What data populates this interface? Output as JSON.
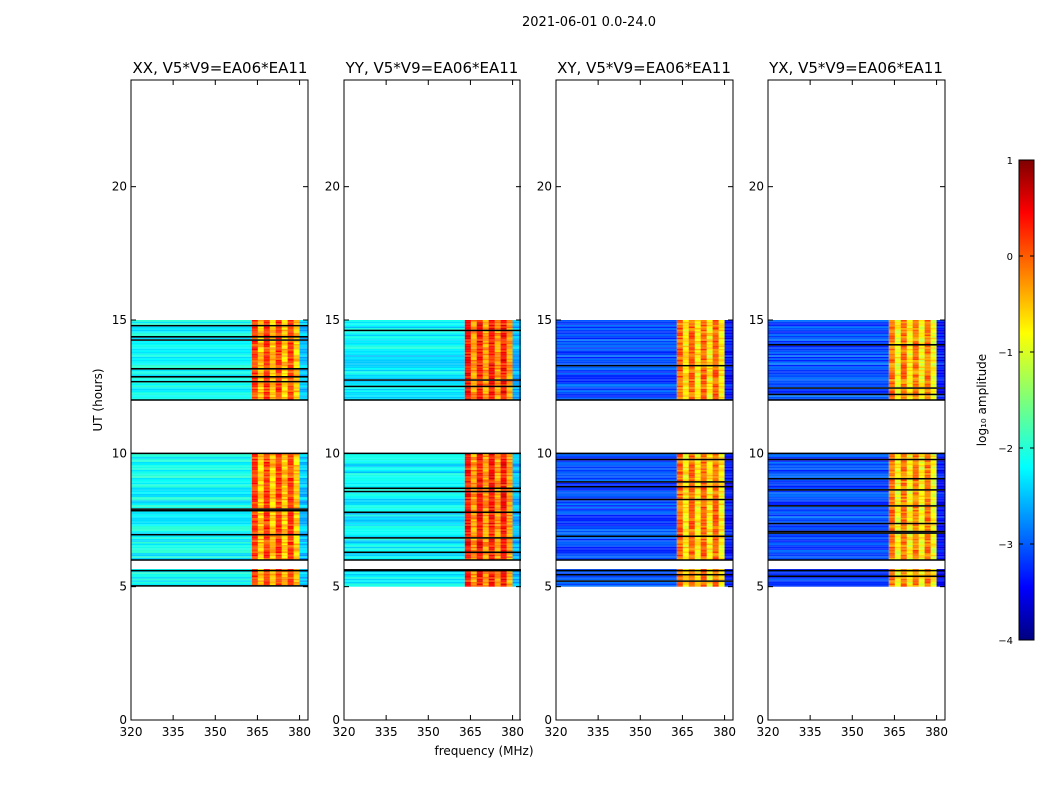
{
  "figure_title": "2021-06-01 0.0-24.0",
  "chart_data": {
    "type": "heatmap",
    "suptitle": "2021-06-01 0.0-24.0",
    "xlabel": "frequency (MHz)",
    "ylabel": "UT (hours)",
    "xlim": [
      320,
      383
    ],
    "ylim": [
      0,
      24
    ],
    "xticks": [
      320,
      335,
      350,
      365,
      380
    ],
    "yticks": [
      0,
      5,
      10,
      15,
      20
    ],
    "colorbar": {
      "label": "log₁₀ amplitude",
      "range": [
        -4,
        1
      ],
      "ticks": [
        1,
        0,
        -1,
        -2,
        -3,
        -4
      ],
      "colormap": "jet"
    },
    "data_coverage_hours": [
      [
        5.0,
        10.0
      ],
      [
        12.0,
        15.0
      ]
    ],
    "flagged_gap_hours": [
      [
        5.6,
        6.0
      ],
      [
        10.0,
        12.0
      ]
    ],
    "strong_band_mhz": [
      363,
      380
    ],
    "panels": [
      {
        "title": "XX, V5*V9=EA06*EA11",
        "low_band_level": -2.1,
        "strong_band_level": -0.4
      },
      {
        "title": "YY, V5*V9=EA06*EA11",
        "low_band_level": -2.2,
        "strong_band_level": -0.2
      },
      {
        "title": "XY, V5*V9=EA06*EA11",
        "low_band_level": -3.0,
        "strong_band_level": -0.6
      },
      {
        "title": "YX, V5*V9=EA06*EA11",
        "low_band_level": -3.0,
        "strong_band_level": -0.7
      }
    ]
  }
}
